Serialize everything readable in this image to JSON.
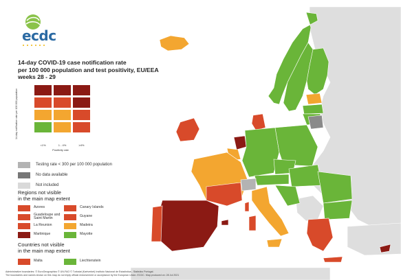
{
  "logo": {
    "text": "ecdc"
  },
  "title": [
    "14-day COVID-19 case notification rate",
    "per 100 000 population and test positivity, EU/EEA",
    "weeks 28 - 29"
  ],
  "matrix": {
    "y_axis_label": "14-day notification rate per 100 000 population",
    "x_axis_label": "Positivity rate",
    "x_ticks": [
      "<1%",
      "1 - 4%",
      "≥4%"
    ],
    "rows": [
      [
        "#8b1a14",
        "#8b1a14",
        "#8b1a14"
      ],
      [
        "#d84a2a",
        "#d84a2a",
        "#8b1a14"
      ],
      [
        "#f3a630",
        "#f3a630",
        "#d84a2a"
      ],
      [
        "#6ab539",
        "#f3a630",
        "#d84a2a"
      ]
    ]
  },
  "legend": [
    {
      "label": "Testing rate < 300 per 100 000 population",
      "color": "#b3b3b3",
      "icon": "grey-swatch"
    },
    {
      "label": "No data available",
      "color": "#777777",
      "icon": "dark-grey-swatch"
    },
    {
      "label": "Not included",
      "color": "#d9d9d9",
      "icon": "light-grey-swatch"
    }
  ],
  "regions_title": [
    "Regions not visible",
    "in the main map extent"
  ],
  "regions": [
    {
      "label": "Azores",
      "color": "#d84a2a"
    },
    {
      "label": "Canary Islands",
      "color": "#d84a2a"
    },
    {
      "label": "Guadeloupe and Saint Martin",
      "color": "#d84a2a"
    },
    {
      "label": "Guyane",
      "color": "#d84a2a"
    },
    {
      "label": "La Reunion",
      "color": "#d84a2a"
    },
    {
      "label": "Madeira",
      "color": "#f3a630"
    },
    {
      "label": "Martinique",
      "color": "#8b1a14"
    },
    {
      "label": "Mayotte",
      "color": "#6ab539"
    }
  ],
  "countries_title": [
    "Countries not visible",
    "in the main map extent"
  ],
  "countries": [
    {
      "label": "Malta",
      "color": "#d84a2a"
    },
    {
      "label": "Liechtenstein",
      "color": "#6ab539"
    }
  ],
  "footer": [
    "Administrative boundaries: © EuroGeographics © UN-FAO © Turkstat (Kartverket) Instituto Nacional de Estadística - Statistics Portugal.",
    "The boundaries and names shown on this map do not imply official endorsement or acceptance by the European Union. ECDC. Map produced on: 28 Jul 2021"
  ],
  "colors": {
    "dark_red": "#8b1a14",
    "red": "#d84a2a",
    "orange": "#f3a630",
    "green": "#6ab539",
    "grey": "#b3b3b3",
    "dark_grey": "#777777",
    "not_included": "#d9d9d9",
    "sea": "#ffffff"
  }
}
